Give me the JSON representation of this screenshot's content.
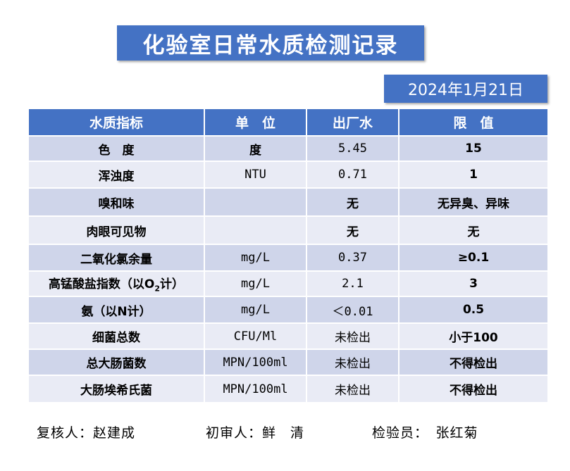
{
  "title": "化验室日常水质检测记录",
  "date": "2024年1月21日",
  "table": {
    "headers": [
      "水质指标",
      "单　位",
      "出厂水",
      "限　值"
    ],
    "rows": [
      {
        "indicator": "色　度",
        "unit": "度",
        "value": "5.45",
        "limit": "15"
      },
      {
        "indicator": "浑浊度",
        "unit": "NTU",
        "value": "0.71",
        "limit": "1"
      },
      {
        "indicator": "嗅和味",
        "unit": "",
        "value": "无",
        "limit": "无异臭、异味"
      },
      {
        "indicator": "肉眼可见物",
        "unit": "",
        "value": "无",
        "limit": "无"
      },
      {
        "indicator": "二氧化氯余量",
        "unit": "mg/L",
        "value": "0.37",
        "limit": "≥0.1"
      },
      {
        "indicator_prefix": "高锰酸盐指数（以O",
        "indicator_sub": "2",
        "indicator_suffix": "计）",
        "unit": "mg/L",
        "value": "2.1",
        "limit": "3"
      },
      {
        "indicator": "氨（以N计）",
        "unit": "mg/L",
        "value": "＜0.01",
        "limit": "0.5"
      },
      {
        "indicator": "细菌总数",
        "unit": "CFU/Ml",
        "value": "未检出",
        "limit": "小于100"
      },
      {
        "indicator": "总大肠菌数",
        "unit": "MPN/100ml",
        "value": "未检出",
        "limit": "不得检出"
      },
      {
        "indicator": "大肠埃希氏菌",
        "unit": "MPN/100ml",
        "value": "未检出",
        "limit": "不得检出"
      }
    ]
  },
  "signatures": {
    "reviewer": "复核人：赵建成",
    "preliminary": "初审人：鲜　清",
    "inspector": "检验员：　张红菊"
  },
  "colors": {
    "accent": "#4472C4",
    "row_dark": "#CFD5EA",
    "row_light": "#E9EBF5"
  }
}
